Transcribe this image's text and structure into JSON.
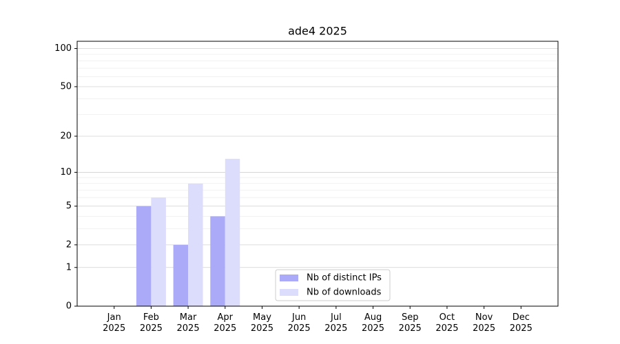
{
  "chart_data": {
    "type": "bar",
    "title": "ade4 2025",
    "categories": [
      "Jan 2025",
      "Feb 2025",
      "Mar 2025",
      "Apr 2025",
      "May 2025",
      "Jun 2025",
      "Jul 2025",
      "Aug 2025",
      "Sep 2025",
      "Oct 2025",
      "Nov 2025",
      "Dec 2025"
    ],
    "series": [
      {
        "name": "Nb of distinct IPs",
        "color": "#aaaaf8",
        "values": [
          0,
          5,
          2,
          4,
          0,
          0,
          0,
          0,
          0,
          0,
          0,
          0
        ]
      },
      {
        "name": "Nb of downloads",
        "color": "#dcdcfc",
        "values": [
          0,
          6,
          8,
          13,
          0,
          0,
          0,
          0,
          0,
          0,
          0,
          0
        ]
      }
    ],
    "yscale": "log1p",
    "ylim": [
      0,
      114
    ],
    "yticks": [
      0,
      1,
      2,
      5,
      10,
      20,
      50,
      100
    ],
    "minor_yticks": [
      3,
      4,
      6,
      7,
      8,
      9,
      30,
      40,
      60,
      70,
      80,
      90
    ],
    "grid": true,
    "legend": "lower center"
  }
}
